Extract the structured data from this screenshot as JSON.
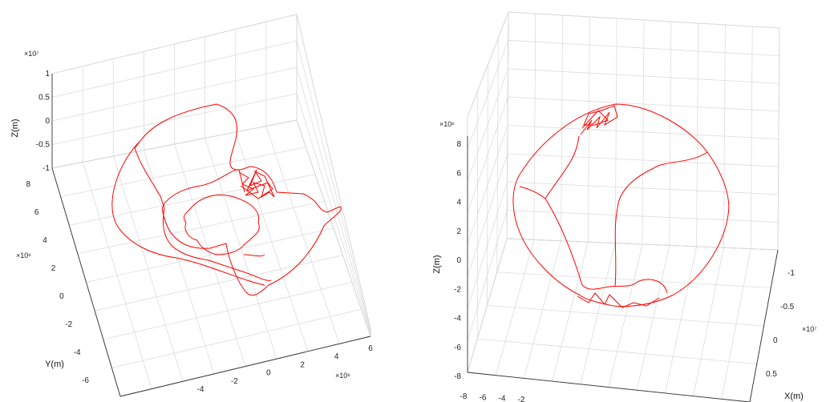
{
  "chart_data": [
    {
      "type": "line",
      "panel": "left",
      "color": "#ff0000",
      "zlabel": "Z(m)",
      "ylabel": "Y(m)",
      "z_exponent": "×10⁷",
      "y_exponent": "×10⁶",
      "x_exponent": "×10⁶",
      "z_ticks": [
        "1",
        "0.5",
        "0",
        "-0.5",
        "-1"
      ],
      "y_ticks": [
        "8",
        "6",
        "4",
        "2",
        "0",
        "-2",
        "-4",
        "-6"
      ],
      "x_ticks": [
        "-4",
        "-2",
        "0",
        "2",
        "4",
        "6"
      ],
      "grid": true,
      "series": [
        {
          "x": [
            -6.2,
            -4.0,
            -1.5,
            1.5,
            4.5,
            6.0,
            4.0,
            1.0,
            -2.0,
            -5.0,
            -6.0
          ],
          "y": [
            3.0,
            6.5,
            7.5,
            6.8,
            3.5,
            0.0,
            -4.0,
            -6.0,
            -5.5,
            -2.5,
            3.0
          ]
        },
        {
          "x": [
            -2.5,
            -0.5,
            1.5,
            2.0,
            0.5,
            -1.5,
            -3.0,
            -2.5
          ],
          "y": [
            2.0,
            3.2,
            2.5,
            0.0,
            -2.5,
            -2.8,
            -0.5,
            2.0
          ]
        }
      ]
    },
    {
      "type": "line",
      "panel": "right",
      "color": "#ff0000",
      "zlabel": "Z(m)",
      "xlabel": "X(m)",
      "z_exponent": "×10⁶",
      "x_exponent": "×10⁷",
      "z_ticks": [
        "8",
        "6",
        "4",
        "2",
        "0",
        "-2",
        "-4",
        "-6",
        "-8"
      ],
      "x_ticks": [
        "-1",
        "-0.5",
        "0",
        "0.5"
      ],
      "bottom_ticks": [
        "-8",
        "-6",
        "-4",
        "-2"
      ],
      "grid": true,
      "series": [
        {
          "x": [
            0.0,
            0.7,
            1.0,
            0.7,
            0.0,
            -0.7,
            -1.0,
            -0.7,
            0.0
          ],
          "z": [
            8.0,
            5.5,
            0.0,
            -4.5,
            -6.4,
            -5.0,
            0.0,
            5.8,
            8.0
          ]
        }
      ]
    }
  ]
}
